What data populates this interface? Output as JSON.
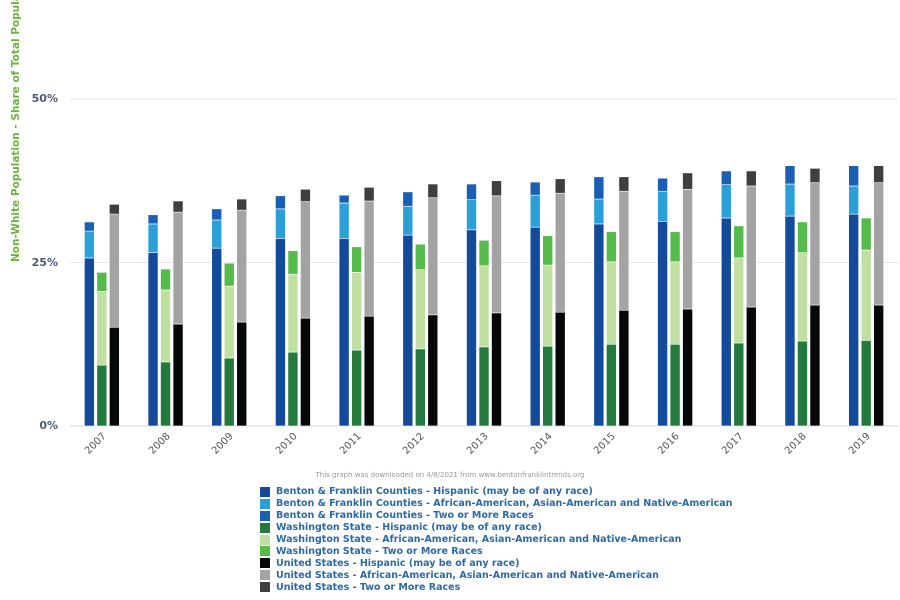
{
  "chart_data": {
    "type": "bar",
    "stacked": true,
    "ylabel": "Non-White Population - Share of Total Population",
    "ylim": [
      0,
      60
    ],
    "yticks": [
      "0%",
      "25%",
      "50%"
    ],
    "ytick_values": [
      0,
      25,
      50
    ],
    "grid": true,
    "categories": [
      "2007",
      "2008",
      "2009",
      "2010",
      "2011",
      "2012",
      "2013",
      "2014",
      "2015",
      "2016",
      "2017",
      "2018",
      "2019"
    ],
    "stacks": [
      {
        "group": "Benton & Franklin Counties",
        "series": [
          {
            "name": "Benton & Franklin Counties - Hispanic (may be of any race)",
            "color": "#144a9a",
            "values": [
              25.7,
              26.5,
              27.2,
              28.7,
              28.7,
              29.2,
              30.0,
              30.4,
              30.9,
              31.3,
              31.8,
              32.1,
              32.4
            ]
          },
          {
            "name": "Benton & Franklin Counties - African-American, Asian-American and Native-American",
            "color": "#2a9fd8",
            "values": [
              4.1,
              4.4,
              4.3,
              4.5,
              5.4,
              4.4,
              4.6,
              4.9,
              3.8,
              4.6,
              5.1,
              4.9,
              4.3
            ]
          },
          {
            "name": "Benton & Franklin Counties - Two or More Races",
            "color": "#1a5fb4",
            "values": [
              1.4,
              1.4,
              1.7,
              2.0,
              1.2,
              2.2,
              2.4,
              2.0,
              3.4,
              2.0,
              2.1,
              2.8,
              3.1
            ]
          }
        ]
      },
      {
        "group": "Washington State",
        "series": [
          {
            "name": "Washington State - Hispanic (may be of any race)",
            "color": "#237a3c",
            "values": [
              9.3,
              9.8,
              10.4,
              11.3,
              11.6,
              11.8,
              12.1,
              12.2,
              12.5,
              12.5,
              12.7,
              13.0,
              13.1
            ]
          },
          {
            "name": "Washington State - African-American, Asian-American and Native-American",
            "color": "#bfe0a0",
            "values": [
              11.3,
              11.0,
              11.0,
              11.9,
              11.9,
              12.1,
              12.4,
              12.4,
              12.6,
              12.6,
              13.0,
              13.5,
              13.8
            ]
          },
          {
            "name": "Washington State - Two or More Races",
            "color": "#55bb4a",
            "values": [
              2.9,
              3.2,
              3.5,
              3.6,
              3.9,
              3.9,
              3.9,
              4.5,
              4.6,
              4.6,
              4.9,
              4.7,
              4.9
            ]
          }
        ]
      },
      {
        "group": "United States",
        "series": [
          {
            "name": "United States - Hispanic (may be of any race)",
            "color": "#050807",
            "values": [
              15.1,
              15.6,
              15.9,
              16.5,
              16.8,
              17.0,
              17.3,
              17.4,
              17.7,
              17.9,
              18.2,
              18.5,
              18.5
            ]
          },
          {
            "name": "United States - African-American, Asian-American and Native-American",
            "color": "#a3a3a3",
            "values": [
              17.3,
              17.1,
              17.1,
              17.8,
              17.6,
              17.9,
              17.9,
              18.2,
              18.2,
              18.3,
              18.5,
              18.7,
              18.7
            ]
          },
          {
            "name": "United States - Two or More Races",
            "color": "#3f3f3f",
            "values": [
              1.5,
              1.7,
              1.7,
              1.9,
              2.1,
              2.1,
              2.3,
              2.2,
              2.2,
              2.5,
              2.3,
              2.2,
              2.6
            ]
          }
        ]
      }
    ],
    "legend_position": "bottom",
    "note": "This graph was downloaded on 4/8/2021 from www.bentonfranklintrends.org"
  }
}
